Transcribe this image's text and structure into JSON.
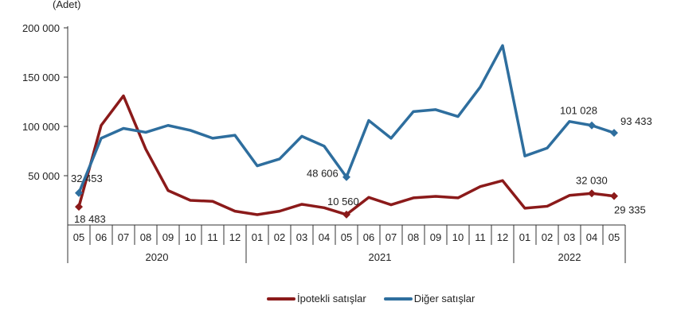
{
  "chart_data": {
    "type": "line",
    "title": "",
    "ylabel": "(Adet)",
    "xlabel": "",
    "ylim": [
      0,
      200000
    ],
    "yticks": [
      {
        "value": 0,
        "label": ""
      },
      {
        "value": 50000,
        "label": "50 000"
      },
      {
        "value": 100000,
        "label": "100 000"
      },
      {
        "value": 150000,
        "label": "150 000"
      },
      {
        "value": 200000,
        "label": "200 000"
      }
    ],
    "categories": [
      "05",
      "06",
      "07",
      "08",
      "09",
      "10",
      "11",
      "12",
      "01",
      "02",
      "03",
      "04",
      "05",
      "06",
      "07",
      "08",
      "09",
      "10",
      "11",
      "12",
      "01",
      "02",
      "03",
      "04",
      "05"
    ],
    "year_groups": [
      {
        "label": "2020",
        "start": 0,
        "end": 7
      },
      {
        "label": "2021",
        "start": 8,
        "end": 19
      },
      {
        "label": "2022",
        "start": 20,
        "end": 24
      }
    ],
    "series": [
      {
        "name": "İpotekli satışlar",
        "color": "#8b1a1a",
        "values": [
          18483,
          101000,
          131000,
          77000,
          35000,
          25000,
          24000,
          14000,
          10500,
          14000,
          21000,
          17500,
          10560,
          28000,
          20500,
          27500,
          29000,
          27500,
          39000,
          45000,
          17000,
          19000,
          30000,
          32030,
          29335
        ],
        "labels": [
          {
            "index": 0,
            "text": "18 483",
            "dx": -6,
            "dy": 20
          },
          {
            "index": 12,
            "text": "10 560",
            "dx": -24,
            "dy": -12
          },
          {
            "index": 23,
            "text": "32 030",
            "dx": -20,
            "dy": -12
          },
          {
            "index": 24,
            "text": "29 335",
            "dx": 0,
            "dy": 22
          }
        ]
      },
      {
        "name": "Diğer satışlar",
        "color": "#2e6e9e",
        "values": [
          32453,
          88000,
          98000,
          94000,
          101000,
          96000,
          88000,
          91000,
          60000,
          67000,
          90000,
          80000,
          48606,
          106000,
          88000,
          115000,
          117000,
          110000,
          140000,
          182000,
          70000,
          78000,
          105000,
          101028,
          93433
        ],
        "labels": [
          {
            "index": 0,
            "text": "32 453",
            "dx": -10,
            "dy": -14
          },
          {
            "index": 12,
            "text": "48 606",
            "dx": -50,
            "dy": 0
          },
          {
            "index": 23,
            "text": "101 028",
            "dx": -40,
            "dy": -14
          },
          {
            "index": 24,
            "text": "93 433",
            "dx": 8,
            "dy": -10
          }
        ]
      }
    ],
    "legend_position": "bottom"
  },
  "legend": {
    "items": [
      {
        "label": "İpotekli satışlar",
        "color": "#8b1a1a"
      },
      {
        "label": "Diğer satışlar",
        "color": "#2e6e9e"
      }
    ]
  }
}
